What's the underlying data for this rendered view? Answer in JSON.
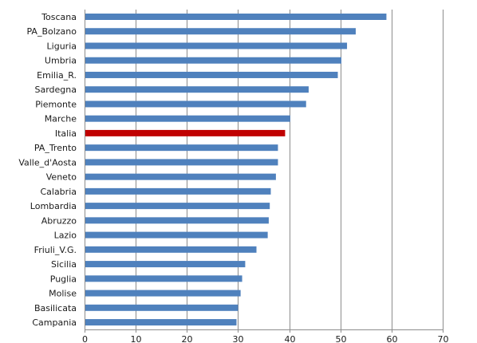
{
  "chart_data": {
    "type": "bar",
    "orientation": "horizontal",
    "categories": [
      "Toscana",
      "PA_Bolzano",
      "Liguria",
      "Umbria",
      "Emilia_R.",
      "Sardegna",
      "Piemonte",
      "Marche",
      "Italia",
      "PA_Trento",
      "Valle_d'Aosta",
      "Veneto",
      "Calabria",
      "Lombardia",
      "Abruzzo",
      "Lazio",
      "Friuli_V.G.",
      "Sicilia",
      "Puglia",
      "Molise",
      "Basilicata",
      "Campania"
    ],
    "values": [
      59,
      53,
      51.3,
      50.2,
      49.5,
      43.8,
      43.3,
      40.2,
      39.2,
      37.8,
      37.8,
      37.4,
      36.4,
      36.2,
      36.0,
      35.8,
      33.6,
      31.4,
      30.8,
      30.5,
      30.0,
      29.7
    ],
    "xlim": [
      0,
      70
    ],
    "xticks": [
      "0",
      "10",
      "20",
      "30",
      "40",
      "50",
      "60",
      "70"
    ],
    "grid": true,
    "title": "",
    "xlabel": "",
    "ylabel": "",
    "colors": {
      "bar": "#4f81bd",
      "highlight": "#c00000"
    },
    "highlight_category": "Italia"
  }
}
